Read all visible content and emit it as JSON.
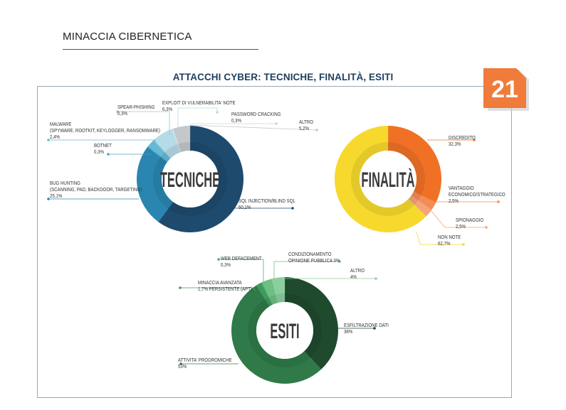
{
  "header": {
    "section_title": "MINACCIA CIBERNETICA",
    "chart_title": "ATTACCHI CYBER: TECNICHE, FINALITÀ, ESITI",
    "page_number": "21"
  },
  "colors": {
    "badge": "#f07b3a",
    "frame": "#9aa7b2",
    "title": "#1f3f5f"
  },
  "chart_data": [
    {
      "type": "pie",
      "title": "TECNICHE",
      "slices": [
        {
          "label": "SQL INJECTION/BLIND SQL",
          "value": 60.1,
          "display": "60,1%",
          "color": "#1e4a6e"
        },
        {
          "label": "BUG HUNTING (SCANNING, PAD, BACKDOOR, TARGETING)",
          "value": 25.1,
          "display": "25,1%",
          "color": "#2a86b0"
        },
        {
          "label": "BOTNET",
          "value": 0.3,
          "display": "0,3%",
          "color": "#4aa3c4"
        },
        {
          "label": "MALWARE (SPYWARE, ROOTKIT, KEYLOGGER, RANSOMWARE)",
          "value": 2.4,
          "display": "2,4%",
          "color": "#66b9d4"
        },
        {
          "label": "SPEAR-PHISHING",
          "value": 0.3,
          "display": "0,3%",
          "color": "#8ccbe0"
        },
        {
          "label": "EXPLOIT DI VULNERABILITA' NOTE",
          "value": 6.3,
          "display": "6,3%",
          "color": "#b5dbe8"
        },
        {
          "label": "PASSWORD CRACKING",
          "value": 0.3,
          "display": "0,3%",
          "color": "#d9e6ea"
        },
        {
          "label": "ALTRO",
          "value": 5.2,
          "display": "5,2%",
          "color": "#c4c8cb"
        }
      ]
    },
    {
      "type": "pie",
      "title": "FINALITÀ",
      "slices": [
        {
          "label": "DISCREDITO",
          "value": 32.3,
          "display": "32,3%",
          "color": "#f07126"
        },
        {
          "label": "VANTAGGIO ECONOMICO/STRATEGICO",
          "value": 2.5,
          "display": "2,5%",
          "color": "#f38c55"
        },
        {
          "label": "SPIONAGGIO",
          "value": 2.5,
          "display": "2,5%",
          "color": "#f4a47a"
        },
        {
          "label": "NON NOTE",
          "value": 62.7,
          "display": "62,7%",
          "color": "#f7d92e"
        }
      ]
    },
    {
      "type": "pie",
      "title": "ESITI",
      "slices": [
        {
          "label": "ESFILTRAZIONE DATI",
          "value": 38,
          "display": "38%",
          "color": "#1f4a2e"
        },
        {
          "label": "ATTIVITA' PRODROMICHE",
          "value": 53,
          "display": "53%",
          "color": "#2f7a48"
        },
        {
          "label": "MINACCIA AVANZATA PERSISTENTE (APT)",
          "value": 1.7,
          "display": "1,7%",
          "color": "#3f9a5c"
        },
        {
          "label": "WEB DEFACEMENT",
          "value": 0.3,
          "display": "0,3%",
          "color": "#52ad6b"
        },
        {
          "label": "CONDIZIONAMENTO OPINIONE PUBBLICA",
          "value": 3,
          "display": "3%",
          "color": "#6cc083"
        },
        {
          "label": "ALTRO",
          "value": 4,
          "display": "4%",
          "color": "#8bcf9e"
        }
      ]
    }
  ],
  "labels": {
    "tecniche": [
      {
        "lines": [
          "SPEAR-PHISHING",
          "0,3%"
        ]
      },
      {
        "lines": [
          "EXPLOIT DI VULNERABILITA' NOTE",
          "6,3%"
        ]
      },
      {
        "lines": [
          "PASSWORD CRACKING",
          "0,3%"
        ]
      },
      {
        "lines": [
          "ALTRO",
          "5,2%"
        ]
      },
      {
        "lines": [
          "MALWARE",
          "(SPYWARE, ROOTKIT, KEYLOGGER, RANSOMWARE)",
          "2,4%"
        ]
      },
      {
        "lines": [
          "BOTNET",
          "0,3%"
        ]
      },
      {
        "lines": [
          "BUG HUNTING",
          "(SCANNING, PAD, BACKDOOR, TARGETING)",
          "25,1%"
        ]
      },
      {
        "lines": [
          "SQL INJECTION/BLIND SQL",
          "60,1%"
        ]
      }
    ],
    "finalita": [
      {
        "lines": [
          "DISCREDITO",
          "32,3%"
        ]
      },
      {
        "lines": [
          "VANTAGGIO",
          "ECONOMICO/STRATEGICO",
          "2,5%"
        ]
      },
      {
        "lines": [
          "SPIONAGGIO",
          "2,5%"
        ]
      },
      {
        "lines": [
          "NON NOTE",
          "62,7%"
        ]
      }
    ],
    "esiti": [
      {
        "lines": [
          "WEB DEFACEMENT",
          "0,3%"
        ]
      },
      {
        "lines": [
          "CONDIZIONAMENTO",
          "OPINIONE PUBBLICA 3%"
        ]
      },
      {
        "lines": [
          "ALTRO",
          "4%"
        ]
      },
      {
        "lines": [
          "MINACCIA AVANZATA",
          "1,7% PERSISTENTE (APT)"
        ]
      },
      {
        "lines": [
          "ESFILTRAZIONE DATI",
          "38%"
        ]
      },
      {
        "lines": [
          "ATTIVITA' PRODROMICHE",
          "53%"
        ]
      }
    ]
  }
}
